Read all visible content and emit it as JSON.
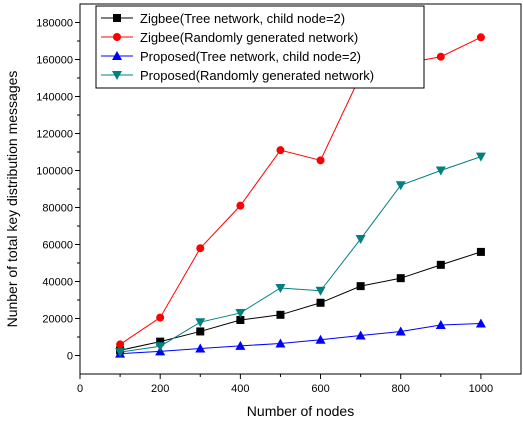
{
  "chart_data": {
    "type": "line",
    "title": "",
    "xlabel": "Number of nodes",
    "ylabel": "Nunber of total key distribution messages",
    "xlim": [
      0,
      1100
    ],
    "ylim": [
      -10000,
      190000
    ],
    "x_ticks": [
      0,
      200,
      400,
      600,
      800,
      1000
    ],
    "y_ticks": [
      0,
      20000,
      40000,
      60000,
      80000,
      100000,
      120000,
      140000,
      160000,
      180000
    ],
    "x_tick_labels": [
      "0",
      "200",
      "400",
      "600",
      "800",
      "1000"
    ],
    "y_tick_labels": [
      "0",
      "20000",
      "40000",
      "60000",
      "80000",
      "100000",
      "120000",
      "140000",
      "160000",
      "180000"
    ],
    "grid": false,
    "legend_position": "top-left",
    "x": [
      100,
      200,
      300,
      400,
      500,
      600,
      700,
      800,
      900,
      1000
    ],
    "series": [
      {
        "name": "Zigbee(Tree network, child node=2)",
        "color": "#000000",
        "marker": "square",
        "values": [
          2800,
          7500,
          13000,
          19200,
          22000,
          28500,
          37500,
          41800,
          49000,
          56000
        ]
      },
      {
        "name": "Zigbee(Randomly generated network)",
        "color": "#ff0000",
        "marker": "circle",
        "values": [
          6000,
          20500,
          58000,
          81000,
          111000,
          105500,
          151500,
          157500,
          161500,
          172000
        ]
      },
      {
        "name": "Proposed(Tree network, child node=2)",
        "color": "#0000ff",
        "marker": "triangle-up",
        "values": [
          1000,
          2200,
          3800,
          5200,
          6500,
          8500,
          10800,
          13000,
          16500,
          17300
        ]
      },
      {
        "name": "Proposed(Randomly generated network)",
        "color": "#008080",
        "marker": "triangle-down",
        "values": [
          1800,
          5000,
          18000,
          23000,
          36500,
          35000,
          63000,
          92000,
          100000,
          107500
        ]
      }
    ]
  }
}
